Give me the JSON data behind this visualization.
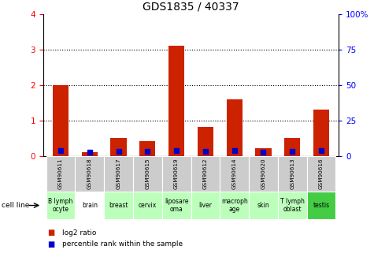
{
  "title": "GDS1835 / 40337",
  "gsm_labels": [
    "GSM90611",
    "GSM90618",
    "GSM90617",
    "GSM90615",
    "GSM90619",
    "GSM90612",
    "GSM90614",
    "GSM90620",
    "GSM90613",
    "GSM90616"
  ],
  "cell_labels": [
    "B lymph\nocyte",
    "brain",
    "breast",
    "cervix",
    "liposare\noma",
    "liver",
    "macroph\nage",
    "skin",
    "T lymph\noblast",
    "testis"
  ],
  "log2_ratio": [
    2.0,
    0.12,
    0.52,
    0.42,
    3.12,
    0.82,
    1.6,
    0.22,
    0.52,
    1.32
  ],
  "percentile_rank": [
    3.93,
    2.55,
    3.3,
    3.2,
    3.93,
    3.48,
    3.9,
    2.98,
    3.2,
    3.9
  ],
  "bar_color": "#cc2200",
  "dot_color": "#0000cc",
  "bg_gsm": "#cccccc",
  "bg_cell_light": "#bbffbb",
  "bg_cell_dark": "#44cc44",
  "bg_cell_white": "#ffffff",
  "cell_dark_indices": [
    9
  ],
  "cell_white_indices": [
    1
  ],
  "ylim_left": [
    0,
    4
  ],
  "ylim_right": [
    0,
    100
  ],
  "yticks_left": [
    0,
    1,
    2,
    3,
    4
  ],
  "ytick_labels_right": [
    "0",
    "25",
    "50",
    "75",
    "100%"
  ],
  "dotted_lines": [
    1,
    2,
    3
  ],
  "bar_width": 0.55,
  "legend_red_label": "log2 ratio",
  "legend_blue_label": "percentile rank within the sample",
  "cell_line_label": "cell line"
}
